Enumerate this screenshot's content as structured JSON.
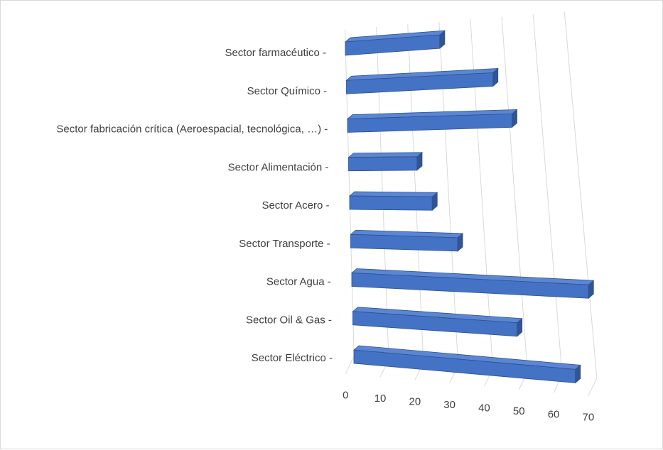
{
  "chart_data": {
    "type": "bar",
    "orientation": "horizontal",
    "style": "3d-perspective",
    "title": "",
    "xlabel": "",
    "ylabel": "",
    "categories": [
      "Sector farmacéutico -",
      "Sector Químico -",
      "Sector fabricación crítica (Aeroespacial, tecnológica, …) -",
      "Sector Alimentación -",
      "Sector Acero -",
      "Sector Transporte -",
      "Sector Agua -",
      "Sector Oil & Gas -",
      "Sector Eléctrico -"
    ],
    "values": [
      30,
      46,
      51,
      21,
      25,
      32,
      70,
      48,
      64
    ],
    "xlim": [
      0,
      70
    ],
    "x_ticks": [
      "0",
      "10",
      "20",
      "30",
      "40",
      "50",
      "60",
      "70"
    ],
    "grid": true,
    "legend": "none",
    "colors": {
      "bar_front": "#4472c4",
      "bar_top": "#5b86d4",
      "bar_side": "#2f5597",
      "bar_edge": "#2f528f",
      "grid": "#d9d9d9",
      "text": "#404040"
    }
  }
}
